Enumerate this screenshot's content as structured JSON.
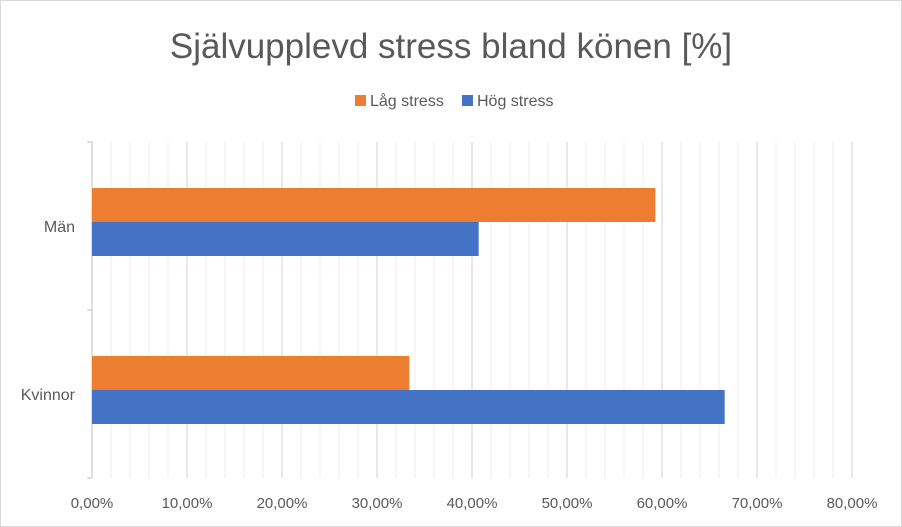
{
  "chart_data": {
    "type": "bar",
    "orientation": "horizontal",
    "title": "Självupplevd stress bland könen [%]",
    "categories": [
      "Män",
      "Kvinnor"
    ],
    "series": [
      {
        "name": "Låg stress",
        "color": "#ed7d31",
        "values": [
          59.3,
          33.4
        ]
      },
      {
        "name": "Hög stress",
        "color": "#4472c4",
        "values": [
          40.7,
          66.6
        ]
      }
    ],
    "xlim": [
      0,
      80
    ],
    "major_step": 10,
    "minor_step": 2,
    "tick_labels": [
      "0,00%",
      "10,00%",
      "20,00%",
      "30,00%",
      "40,00%",
      "50,00%",
      "60,00%",
      "70,00%",
      "80,00%"
    ],
    "legend_position": "top",
    "grid": true
  }
}
